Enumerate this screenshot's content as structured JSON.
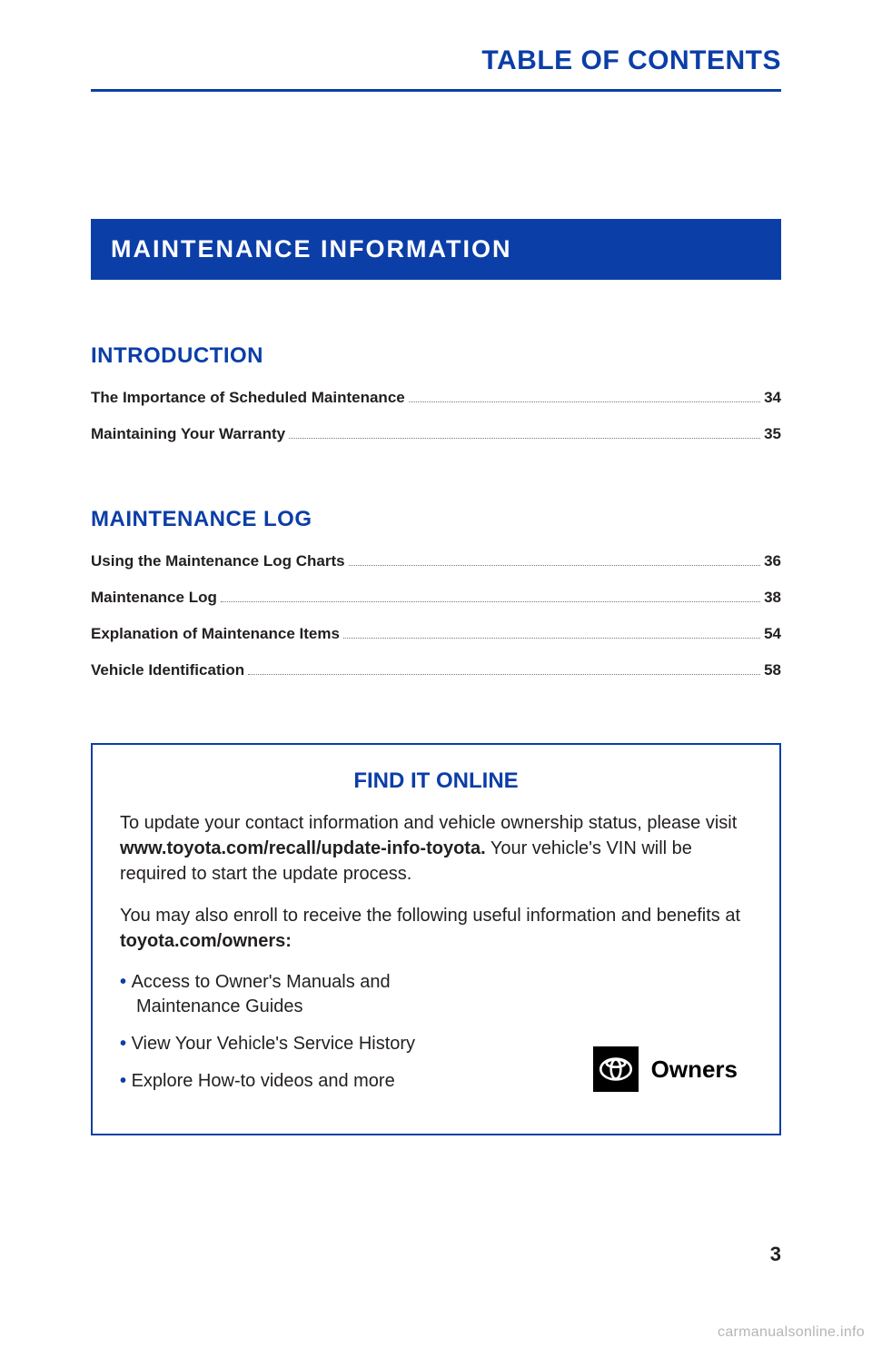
{
  "colors": {
    "brand_blue": "#0b3ea7",
    "rule_blue": "#0b3ea7",
    "banner_bg": "#0b3ea7",
    "callout_border": "#0b3ea7",
    "bullet_blue": "#0b3ea7",
    "body_text": "#231f20",
    "dot_leader": "#777777"
  },
  "header": {
    "title": "TABLE OF CONTENTS"
  },
  "banner": {
    "label": "MAINTENANCE INFORMATION"
  },
  "sections": [
    {
      "title": "INTRODUCTION",
      "entries": [
        {
          "label": "The Importance of Scheduled Maintenance",
          "page": "34"
        },
        {
          "label": "Maintaining Your Warranty",
          "page": "35"
        }
      ]
    },
    {
      "title": "MAINTENANCE LOG",
      "entries": [
        {
          "label": "Using the Maintenance Log Charts",
          "page": "36"
        },
        {
          "label": "Maintenance Log",
          "page": "38"
        },
        {
          "label": "Explanation of Maintenance Items",
          "page": "54"
        },
        {
          "label": "Vehicle Identification",
          "page": "58"
        }
      ]
    }
  ],
  "callout": {
    "title": "FIND IT ONLINE",
    "para1_pre": "To update your contact information and vehicle ownership status, please visit ",
    "para1_bold": "www.toyota.com/recall/update-info-toyota.",
    "para1_post": " Your vehicle's VIN will be required to start the update process.",
    "para2_pre": "You may also enroll to receive the following useful information and benefits at ",
    "para2_bold": "toyota.com/owners:",
    "bullets": [
      "Access to Owner's Manuals and Maintenance Guides",
      "View Your Vehicle's Service History",
      "Explore How-to videos and more"
    ],
    "owners_label": "Owners"
  },
  "page_number": "3",
  "watermark": "carmanualsonline.info"
}
